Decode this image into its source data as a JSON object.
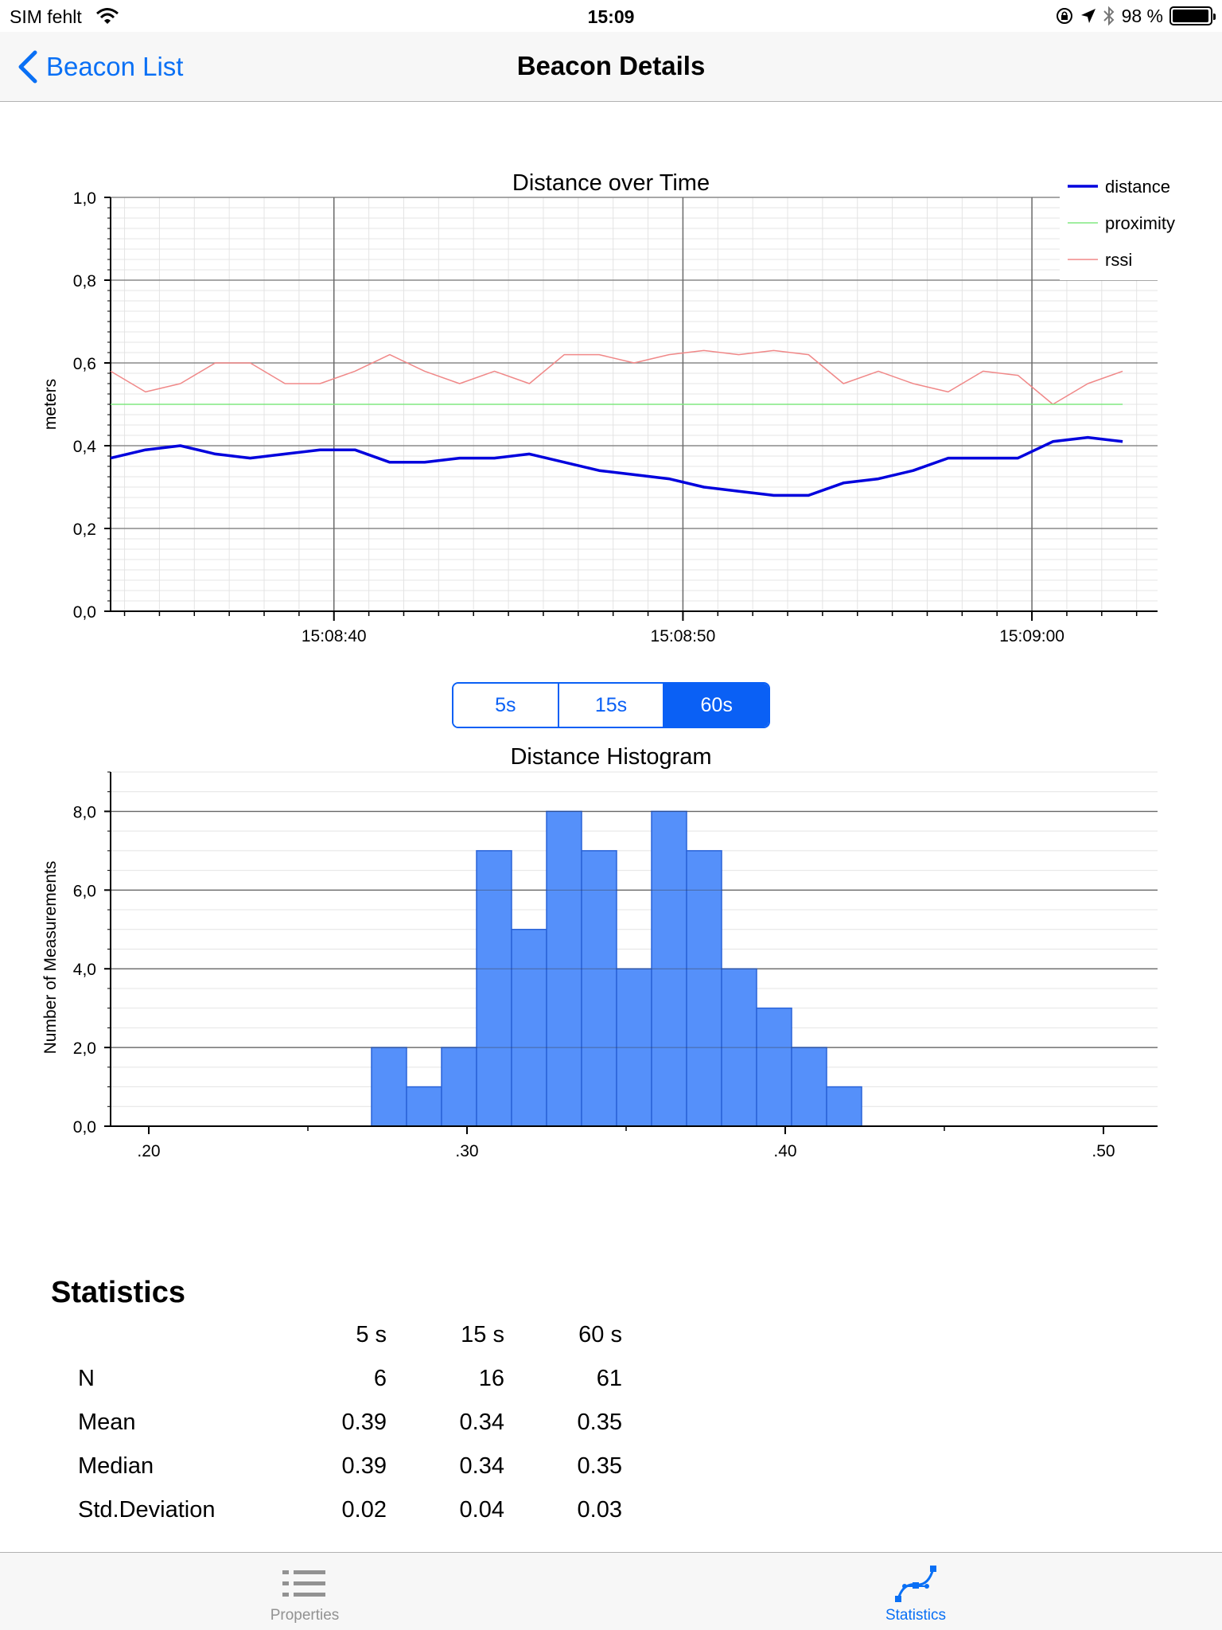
{
  "status_bar": {
    "carrier": "SIM fehlt",
    "time": "15:09",
    "battery": "98 %",
    "battery_level": 0.98,
    "icons": [
      "wifi-icon",
      "rotation-lock-icon",
      "location-arrow-icon",
      "bluetooth-icon",
      "battery-icon"
    ]
  },
  "nav": {
    "back_label": "Beacon List",
    "title": "Beacon Details"
  },
  "colors": {
    "accent": "#0a60f5",
    "distance": "#0000dd",
    "proximity": "#80e880",
    "rssi": "#f08888",
    "histogram_bar": "#5590fa"
  },
  "chart_data": [
    {
      "type": "line",
      "title": "Distance over Time",
      "ylabel": "meters",
      "xlabel": "",
      "ylim": [
        0,
        1.0
      ],
      "y_ticks": [
        "0,0",
        "0,2",
        "0,4",
        "0,6",
        "0,8",
        "1,0"
      ],
      "x_ticks": [
        "15:08:40",
        "15:08:50",
        "15:09:00"
      ],
      "x_tick_seconds": [
        40,
        50,
        60
      ],
      "xlim_seconds": [
        33.6,
        63.6
      ],
      "legend": [
        "distance",
        "proximity",
        "rssi"
      ],
      "legend_position": "top-right",
      "grid": true,
      "x_seconds": [
        33.6,
        34.6,
        35.6,
        36.6,
        37.6,
        38.6,
        39.6,
        40.6,
        41.6,
        42.6,
        43.6,
        44.6,
        45.6,
        46.6,
        47.6,
        48.6,
        49.6,
        50.6,
        51.6,
        52.6,
        53.6,
        54.6,
        55.6,
        56.6,
        57.6,
        58.6,
        59.6,
        60.6,
        61.6,
        62.6
      ],
      "series": [
        {
          "name": "distance",
          "values": [
            0.37,
            0.39,
            0.4,
            0.38,
            0.37,
            0.38,
            0.39,
            0.39,
            0.36,
            0.36,
            0.37,
            0.37,
            0.38,
            0.36,
            0.34,
            0.33,
            0.32,
            0.3,
            0.29,
            0.28,
            0.28,
            0.31,
            0.32,
            0.34,
            0.37,
            0.37,
            0.37,
            0.41,
            0.42,
            0.41
          ]
        },
        {
          "name": "proximity",
          "values": [
            0.5,
            0.5,
            0.5,
            0.5,
            0.5,
            0.5,
            0.5,
            0.5,
            0.5,
            0.5,
            0.5,
            0.5,
            0.5,
            0.5,
            0.5,
            0.5,
            0.5,
            0.5,
            0.5,
            0.5,
            0.5,
            0.5,
            0.5,
            0.5,
            0.5,
            0.5,
            0.5,
            0.5,
            0.5,
            0.5
          ]
        },
        {
          "name": "rssi",
          "values": [
            0.58,
            0.53,
            0.55,
            0.6,
            0.6,
            0.55,
            0.55,
            0.58,
            0.62,
            0.58,
            0.55,
            0.58,
            0.55,
            0.62,
            0.62,
            0.6,
            0.62,
            0.63,
            0.62,
            0.63,
            0.62,
            0.55,
            0.58,
            0.55,
            0.53,
            0.58,
            0.57,
            0.5,
            0.55,
            0.58
          ]
        }
      ]
    },
    {
      "type": "bar",
      "title": "Distance Histogram",
      "ylabel": "Number of Measurements",
      "xlabel": "",
      "ylim": [
        0,
        9
      ],
      "y_ticks": [
        "0,0",
        "2,0",
        "4,0",
        "6,0",
        "8,0"
      ],
      "x_ticks": [
        ".20",
        ".30",
        ".40",
        ".50"
      ],
      "x_tick_values": [
        0.2,
        0.3,
        0.4,
        0.5
      ],
      "xlim": [
        0.188,
        0.517
      ],
      "bin_width": 0.011,
      "bin_starts": [
        0.27,
        0.281,
        0.292,
        0.303,
        0.314,
        0.325,
        0.336,
        0.347,
        0.358,
        0.369,
        0.38,
        0.391,
        0.402,
        0.413
      ],
      "values": [
        2,
        1,
        2,
        7,
        5,
        8,
        7,
        4,
        8,
        7,
        4,
        3,
        2,
        1
      ],
      "grid": true
    }
  ],
  "segmented": {
    "options": [
      "5s",
      "15s",
      "60s"
    ],
    "selected": "60s"
  },
  "statistics": {
    "heading": "Statistics",
    "columns": [
      "5 s",
      "15 s",
      "60 s"
    ],
    "rows": [
      {
        "label": "N",
        "values": [
          "6",
          "16",
          "61"
        ]
      },
      {
        "label": "Mean",
        "values": [
          "0.39",
          "0.34",
          "0.35"
        ]
      },
      {
        "label": "Median",
        "values": [
          "0.39",
          "0.34",
          "0.35"
        ]
      },
      {
        "label": "Std.Deviation",
        "values": [
          "0.02",
          "0.04",
          "0.03"
        ]
      }
    ]
  },
  "tab_bar": {
    "items": [
      {
        "label": "Properties",
        "icon": "list-icon",
        "selected": false
      },
      {
        "label": "Statistics",
        "icon": "curve-icon",
        "selected": true
      }
    ]
  }
}
